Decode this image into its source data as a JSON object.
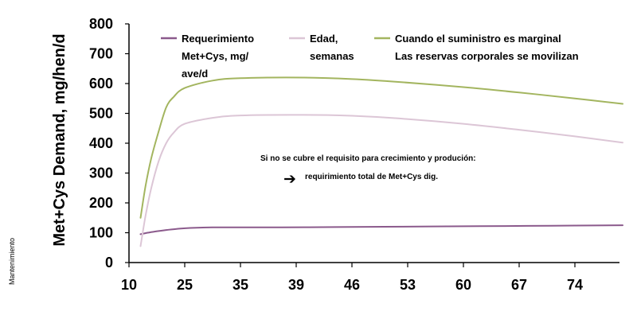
{
  "chart_data": {
    "type": "line",
    "ylabel": "Met+Cys Demand, mg/hen/d",
    "side_label": "Mantenimiento",
    "ylim": [
      0,
      800
    ],
    "yticks": [
      0,
      100,
      200,
      300,
      400,
      500,
      600,
      700,
      800
    ],
    "xticks": [
      "10",
      "25",
      "35",
      "39",
      "46",
      "53",
      "60",
      "67",
      "74"
    ],
    "grid": false,
    "legend_position": "top",
    "legend": [
      {
        "lines": [
          "Requerimiento",
          "Met+Cys, mg/",
          "ave/d"
        ],
        "color": "#8B5A8C"
      },
      {
        "lines": [
          "Edad,",
          "semanas"
        ],
        "color": "#DCC6D6"
      },
      {
        "lines": [
          "Cuando el suministro es marginal",
          "Las reservas corporales se movilizan"
        ],
        "color": "#A3B55F"
      }
    ],
    "annotation": {
      "line1": "Si no se cubre el requisito para crecimiento y produción:",
      "arrow": "➔",
      "line2": "requirimiento total de Met+Cys dig."
    },
    "series": [
      {
        "color": "#8B5A8C",
        "x": [
          13.1,
          15,
          17,
          20,
          23,
          26,
          30,
          34,
          38,
          44,
          50,
          56,
          62,
          68,
          74,
          80
        ],
        "y": [
          95,
          100,
          104,
          109,
          113,
          116,
          118,
          118,
          118,
          119,
          120,
          121,
          122,
          123,
          124,
          125
        ]
      },
      {
        "color": "#DCC6D6",
        "x": [
          13.1,
          14.5,
          16,
          18,
          20,
          22,
          25,
          30,
          35,
          40,
          46,
          52,
          60,
          67,
          74,
          80
        ],
        "y": [
          55,
          160,
          250,
          340,
          400,
          435,
          465,
          485,
          493,
          495,
          492,
          483,
          465,
          445,
          423,
          402
        ]
      },
      {
        "color": "#A3B55F",
        "x": [
          13.1,
          14.5,
          16,
          18,
          20,
          22,
          25,
          30,
          35,
          40,
          46,
          52,
          60,
          67,
          74,
          80
        ],
        "y": [
          150,
          260,
          350,
          440,
          520,
          555,
          585,
          610,
          618,
          620,
          615,
          605,
          588,
          570,
          550,
          532
        ]
      }
    ]
  }
}
